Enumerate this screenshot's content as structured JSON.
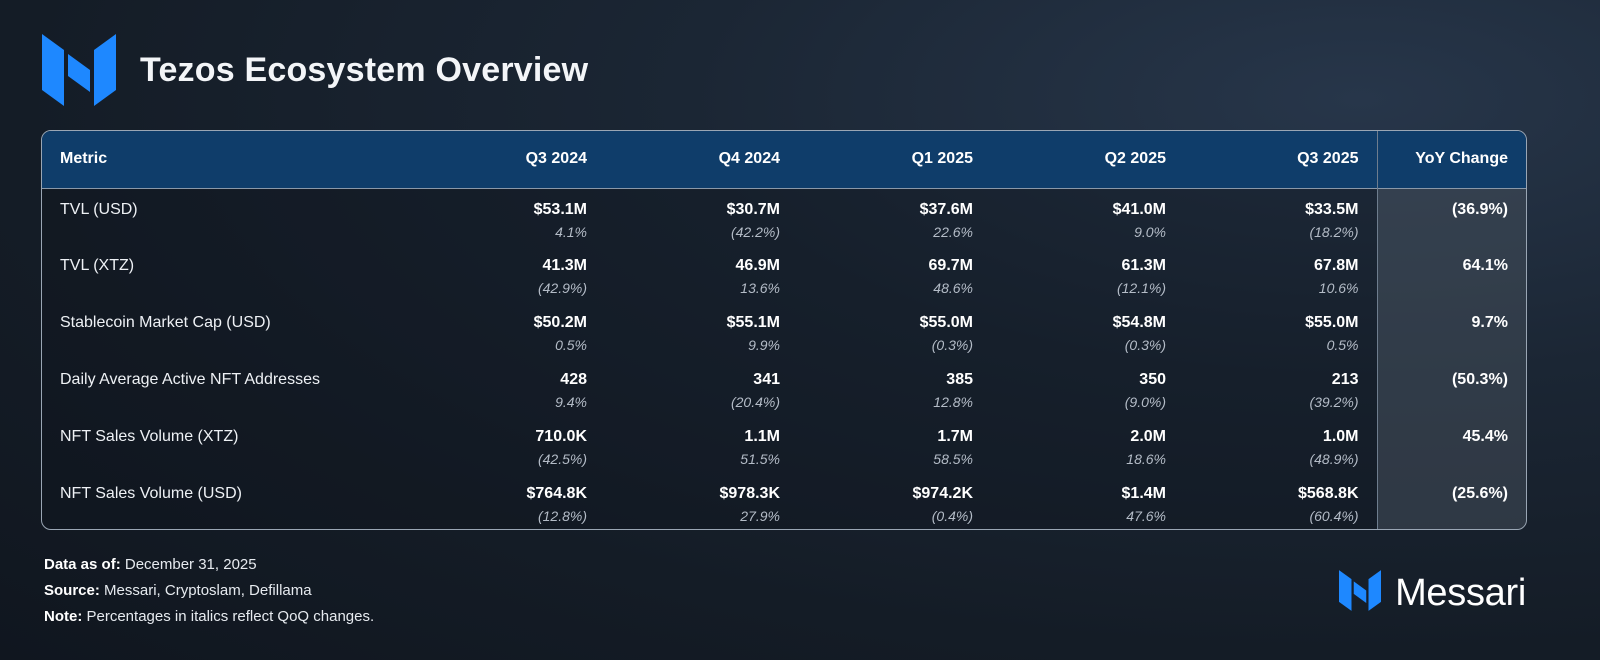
{
  "title": "Tezos Ecosystem Overview",
  "brand": {
    "name": "Messari",
    "accent": "#1e88ff",
    "icon": "messari-logo-icon"
  },
  "chart_data": {
    "type": "table",
    "title": "Tezos Ecosystem Overview",
    "columns": [
      "Metric",
      "Q3 2024",
      "Q4 2024",
      "Q1 2025",
      "Q2 2025",
      "Q3 2025",
      "YoY Change"
    ],
    "rows": [
      {
        "metric": "TVL (USD)",
        "values": [
          "$53.1M",
          "$30.7M",
          "$37.6M",
          "$41.0M",
          "$33.5M"
        ],
        "qoq": [
          "4.1%",
          "(42.2%)",
          "22.6%",
          "9.0%",
          "(18.2%)"
        ],
        "yoy": "(36.9%)"
      },
      {
        "metric": "TVL (XTZ)",
        "values": [
          "41.3M",
          "46.9M",
          "69.7M",
          "61.3M",
          "67.8M"
        ],
        "qoq": [
          "(42.9%)",
          "13.6%",
          "48.6%",
          "(12.1%)",
          "10.6%"
        ],
        "yoy": "64.1%"
      },
      {
        "metric": "Stablecoin Market Cap (USD)",
        "values": [
          "$50.2M",
          "$55.1M",
          "$55.0M",
          "$54.8M",
          "$55.0M"
        ],
        "qoq": [
          "0.5%",
          "9.9%",
          "(0.3%)",
          "(0.3%)",
          "0.5%"
        ],
        "yoy": "9.7%"
      },
      {
        "metric": "Daily Average Active NFT Addresses",
        "values": [
          "428",
          "341",
          "385",
          "350",
          "213"
        ],
        "qoq": [
          "9.4%",
          "(20.4%)",
          "12.8%",
          "(9.0%)",
          "(39.2%)"
        ],
        "yoy": "(50.3%)"
      },
      {
        "metric": "NFT Sales Volume (XTZ)",
        "values": [
          "710.0K",
          "1.1M",
          "1.7M",
          "2.0M",
          "1.0M"
        ],
        "qoq": [
          "(42.5%)",
          "51.5%",
          "58.5%",
          "18.6%",
          "(48.9%)"
        ],
        "yoy": "45.4%"
      },
      {
        "metric": "NFT Sales Volume (USD)",
        "values": [
          "$764.8K",
          "$978.3K",
          "$974.2K",
          "$1.4M",
          "$568.8K"
        ],
        "qoq": [
          "(12.8%)",
          "27.9%",
          "(0.4%)",
          "47.6%",
          "(60.4%)"
        ],
        "yoy": "(25.6%)"
      }
    ]
  },
  "footer": {
    "data_as_of_label": "Data as of:",
    "data_as_of_value": "December 31, 2025",
    "source_label": "Source:",
    "source_value": "Messari, Cryptoslam, Defillama",
    "note_label": "Note:",
    "note_value": "Percentages in italics reflect QoQ changes."
  }
}
